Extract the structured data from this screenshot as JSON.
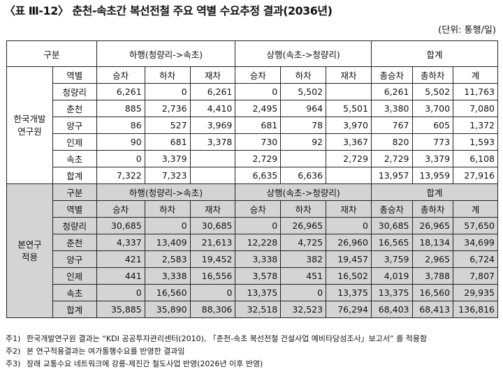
{
  "title": "〈표 Ⅲ-12〉 춘천-속초간 복선전철 주요 역별 수요추정 결과(2036년)",
  "unit": "(단위: 통행/일)",
  "header": {
    "gubun": "구분",
    "down": "하행(청량리->속초)",
    "up": "상행(속초->청량리)",
    "total": "합계",
    "station": "역별",
    "board": "승차",
    "alight": "하차",
    "onboard": "재차",
    "tboard": "총승차",
    "talight": "총하차",
    "tsum": "계"
  },
  "group1": {
    "label_line1": "한국개발",
    "label_line2": "연구원",
    "rows": [
      {
        "station": "청량리",
        "d_on": "6,261",
        "d_off": "0",
        "d_in": "6,261",
        "u_on": "0",
        "u_off": "5,502",
        "u_in": "",
        "t_on": "6,261",
        "t_off": "5,502",
        "t_sum": "11,763"
      },
      {
        "station": "춘천",
        "d_on": "885",
        "d_off": "2,736",
        "d_in": "4,410",
        "u_on": "2,495",
        "u_off": "964",
        "u_in": "5,501",
        "t_on": "3,380",
        "t_off": "3,700",
        "t_sum": "7,080"
      },
      {
        "station": "양구",
        "d_on": "86",
        "d_off": "527",
        "d_in": "3,969",
        "u_on": "681",
        "u_off": "78",
        "u_in": "3,970",
        "t_on": "767",
        "t_off": "605",
        "t_sum": "1,372"
      },
      {
        "station": "인제",
        "d_on": "90",
        "d_off": "681",
        "d_in": "3,378",
        "u_on": "730",
        "u_off": "92",
        "u_in": "3,367",
        "t_on": "820",
        "t_off": "773",
        "t_sum": "1,593"
      },
      {
        "station": "속초",
        "d_on": "0",
        "d_off": "3,379",
        "d_in": "",
        "u_on": "2,729",
        "u_off": "",
        "u_in": "2,729",
        "t_on": "2,729",
        "t_off": "3,379",
        "t_sum": "6,108"
      },
      {
        "station": "합계",
        "d_on": "7,322",
        "d_off": "7,323",
        "d_in": "",
        "u_on": "6,635",
        "u_off": "6,636",
        "u_in": "",
        "t_on": "13,957",
        "t_off": "13,959",
        "t_sum": "27,916"
      }
    ]
  },
  "group2": {
    "label_line1": "본연구",
    "label_line2": "적용",
    "rows": [
      {
        "station": "청량리",
        "d_on": "30,685",
        "d_off": "0",
        "d_in": "30,685",
        "u_on": "0",
        "u_off": "26,965",
        "u_in": "0",
        "t_on": "30,685",
        "t_off": "26,965",
        "t_sum": "57,650"
      },
      {
        "station": "춘천",
        "d_on": "4,337",
        "d_off": "13,409",
        "d_in": "21,613",
        "u_on": "12,228",
        "u_off": "4,725",
        "u_in": "26,960",
        "t_on": "16,565",
        "t_off": "18,134",
        "t_sum": "34,699"
      },
      {
        "station": "양구",
        "d_on": "421",
        "d_off": "2,583",
        "d_in": "19,452",
        "u_on": "3,338",
        "u_off": "382",
        "u_in": "19,457",
        "t_on": "3,759",
        "t_off": "2,965",
        "t_sum": "6,724"
      },
      {
        "station": "인제",
        "d_on": "441",
        "d_off": "3,338",
        "d_in": "16,556",
        "u_on": "3,578",
        "u_off": "451",
        "u_in": "16,502",
        "t_on": "4,019",
        "t_off": "3,788",
        "t_sum": "7,807"
      },
      {
        "station": "속초",
        "d_on": "0",
        "d_off": "16,560",
        "d_in": "0",
        "u_on": "13,375",
        "u_off": "0",
        "u_in": "13,375",
        "t_on": "13,375",
        "t_off": "16,560",
        "t_sum": "29,935"
      },
      {
        "station": "합계",
        "d_on": "35,885",
        "d_off": "35,890",
        "d_in": "88,306",
        "u_on": "32,518",
        "u_off": "32,523",
        "u_in": "76,294",
        "t_on": "68,403",
        "t_off": "68,413",
        "t_sum": "136,816"
      }
    ]
  },
  "notes": [
    {
      "key": "주1)",
      "text": "한국개발연구원 결과는 “KDI 공공투자관리센터(2010), 「춘천-속초 복선전철 건설사업 예비타당성조사」보고서” 를 적용함"
    },
    {
      "key": "주2)",
      "text": "본 연구적용결과는 여가통행수요를 반영한 결과임"
    },
    {
      "key": "주3)",
      "text": "장래 교통수요 네트워크에 강릉-제진간 철도사업 반영(2026년 이후 반영)"
    }
  ]
}
